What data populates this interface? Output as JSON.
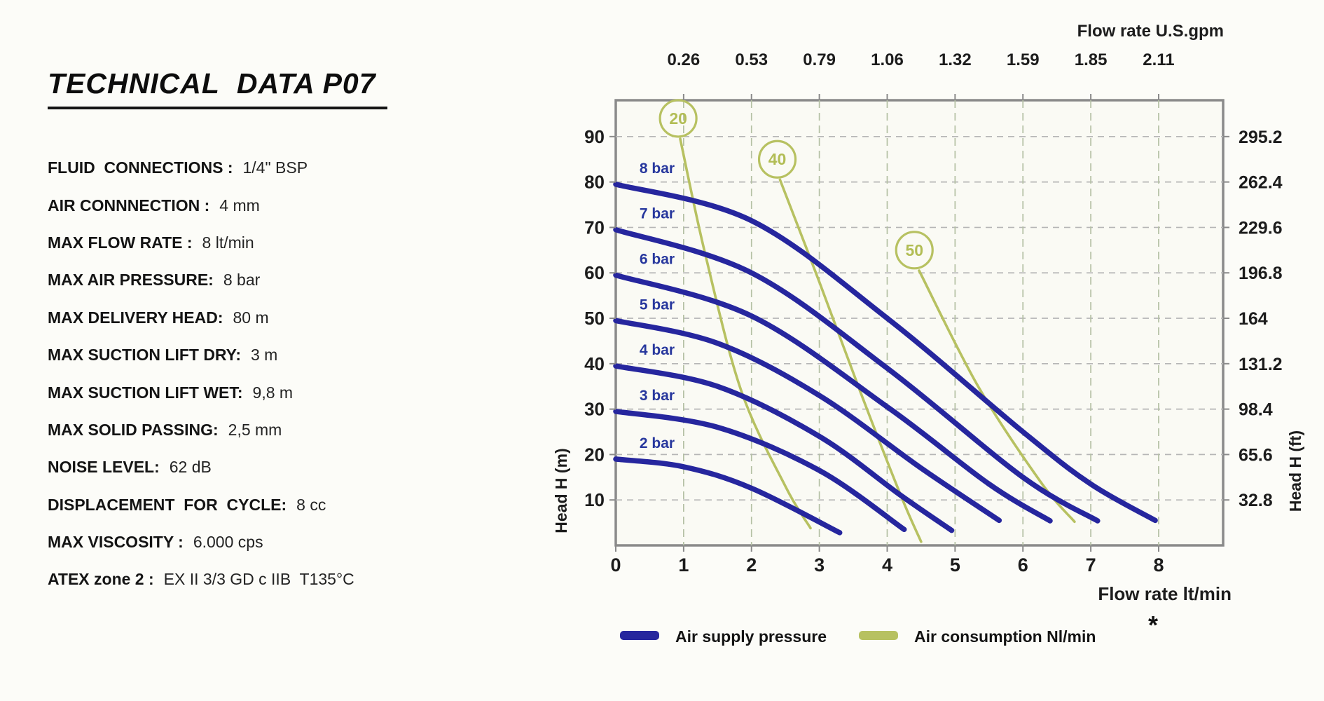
{
  "page": {
    "background": "#fcfcf8"
  },
  "tech_panel": {
    "title": "TECHNICAL  DATA P07",
    "specs": [
      {
        "label": "FLUID  CONNECTIONS :",
        "value": "1/4\" BSP"
      },
      {
        "label": "AIR CONNNECTION :",
        "value": "4 mm"
      },
      {
        "label": "MAX FLOW RATE :",
        "value": "8 lt/min"
      },
      {
        "label": "MAX AIR PRESSURE:",
        "value": "8 bar"
      },
      {
        "label": "MAX DELIVERY HEAD:",
        "value": "80 m"
      },
      {
        "label": "MAX SUCTION LIFT DRY:",
        "value": "3 m"
      },
      {
        "label": "MAX SUCTION LIFT WET:",
        "value": "9,8 m"
      },
      {
        "label": "MAX SOLID PASSING:",
        "value": "2,5 mm"
      },
      {
        "label": "NOISE LEVEL:",
        "value": "62 dB"
      },
      {
        "label": "DISPLACEMENT  FOR  CYCLE:",
        "value": "8 cc"
      },
      {
        "label": "MAX VISCOSITY :",
        "value": "6.000 cps"
      },
      {
        "label": "ATEX zone 2 :",
        "value": "EX II 3/3 GD c IIB  T135°C"
      }
    ]
  },
  "chart": {
    "axes": {
      "top_title": "Flow rate U.S.gpm",
      "bottom_title": "Flow rate  lt/min",
      "left_title": "Head H (m)",
      "right_title": "Head H (ft)"
    },
    "legend": [
      {
        "label": "Air supply pressure",
        "color": "#26269e"
      },
      {
        "label": "Air consumption  Nl/min",
        "color": "#b7c161"
      }
    ],
    "footnote": "*",
    "colors": {
      "supply": "#26269e",
      "consumption": "#b7c161",
      "curve_label": "#27379d",
      "badge": "#b2bd55",
      "grid_h": "#b6b6b6",
      "grid_v": "#b4c0a4",
      "frame": "#8a8a8a",
      "plot_bg": "#fafaf4",
      "tick_text": "#1c1c1c"
    }
  },
  "chart_data": {
    "type": "line",
    "title": "Pump performance curves P07",
    "xlabel": "Flow rate lt/min",
    "ylabel": "Head H (m)",
    "x2label": "Flow rate U.S.gpm",
    "y2label": "Head H (ft)",
    "xlim": [
      0,
      8.95
    ],
    "ylim": [
      0,
      98
    ],
    "grid": "dashed",
    "legend_position": "bottom",
    "x_ticks": {
      "positions": [
        0,
        1,
        2,
        3,
        4,
        5,
        6,
        7,
        8
      ],
      "labels": [
        "0",
        "1",
        "2",
        "3",
        "4",
        "5",
        "6",
        "7",
        "8"
      ]
    },
    "x2_ticks": {
      "positions": [
        1,
        2,
        3,
        4,
        5,
        6,
        7,
        8
      ],
      "labels": [
        "0.26",
        "0.53",
        "0.79",
        "1.06",
        "1.32",
        "1.59",
        "1.85",
        "2.11"
      ]
    },
    "y_ticks": {
      "positions": [
        10,
        20,
        30,
        40,
        50,
        60,
        70,
        80,
        90
      ],
      "labels": [
        "10",
        "20",
        "30",
        "40",
        "50",
        "60",
        "70",
        "80",
        "90"
      ]
    },
    "y2_ticks": {
      "positions": [
        10,
        20,
        30,
        40,
        50,
        60,
        70,
        80,
        90
      ],
      "labels": [
        "32.8",
        "65.6",
        "98.4",
        "131.2",
        "164",
        "196.8",
        "229.6",
        "262.4",
        "295.2"
      ]
    },
    "series": [
      {
        "name": "8 bar",
        "kind": "air-supply-pressure",
        "points": [
          [
            0,
            79.5
          ],
          [
            2,
            71.5
          ],
          [
            4,
            50
          ],
          [
            6,
            25
          ],
          [
            7,
            13.5
          ],
          [
            7.95,
            5.5
          ]
        ]
      },
      {
        "name": "7 bar",
        "kind": "air-supply-pressure",
        "points": [
          [
            0,
            69.5
          ],
          [
            2,
            60
          ],
          [
            4,
            39
          ],
          [
            6,
            15
          ],
          [
            7.1,
            5.4
          ]
        ]
      },
      {
        "name": "6 bar",
        "kind": "air-supply-pressure",
        "points": [
          [
            0,
            59.5
          ],
          [
            2,
            50.5
          ],
          [
            4,
            30.5
          ],
          [
            5.5,
            13.5
          ],
          [
            6.4,
            5.4
          ]
        ]
      },
      {
        "name": "5 bar",
        "kind": "air-supply-pressure",
        "points": [
          [
            0,
            49.5
          ],
          [
            1.5,
            44.5
          ],
          [
            3,
            33
          ],
          [
            4.5,
            17
          ],
          [
            5.65,
            5.5
          ]
        ]
      },
      {
        "name": "4 bar",
        "kind": "air-supply-pressure",
        "points": [
          [
            0,
            39.5
          ],
          [
            1.5,
            35
          ],
          [
            3,
            24
          ],
          [
            4.2,
            11
          ],
          [
            4.95,
            3.3
          ]
        ]
      },
      {
        "name": "3 bar",
        "kind": "air-supply-pressure",
        "points": [
          [
            0,
            29.5
          ],
          [
            1.5,
            26
          ],
          [
            3,
            16.5
          ],
          [
            4.25,
            3.5
          ]
        ]
      },
      {
        "name": "2 bar",
        "kind": "air-supply-pressure",
        "points": [
          [
            0,
            19
          ],
          [
            1,
            17.3
          ],
          [
            2,
            12.6
          ],
          [
            3.3,
            2.8
          ]
        ]
      }
    ],
    "consumption_lines": [
      {
        "name": "20",
        "unit": "Nl/min",
        "badge_at": [
          0.92,
          94
        ],
        "points": [
          [
            0.95,
            89.5
          ],
          [
            1.32,
            64
          ],
          [
            1.85,
            34
          ],
          [
            2.5,
            13
          ],
          [
            2.87,
            3.8
          ]
        ]
      },
      {
        "name": "40",
        "unit": "Nl/min",
        "badge_at": [
          2.38,
          85
        ],
        "points": [
          [
            2.42,
            80.5
          ],
          [
            3.0,
            58
          ],
          [
            3.6,
            34
          ],
          [
            4.2,
            11
          ],
          [
            4.5,
            0.8
          ]
        ]
      },
      {
        "name": "50",
        "unit": "Nl/min",
        "badge_at": [
          4.4,
          65
        ],
        "points": [
          [
            4.47,
            60.5
          ],
          [
            5.34,
            35
          ],
          [
            6.26,
            14
          ],
          [
            6.76,
            5.2
          ]
        ]
      }
    ]
  }
}
